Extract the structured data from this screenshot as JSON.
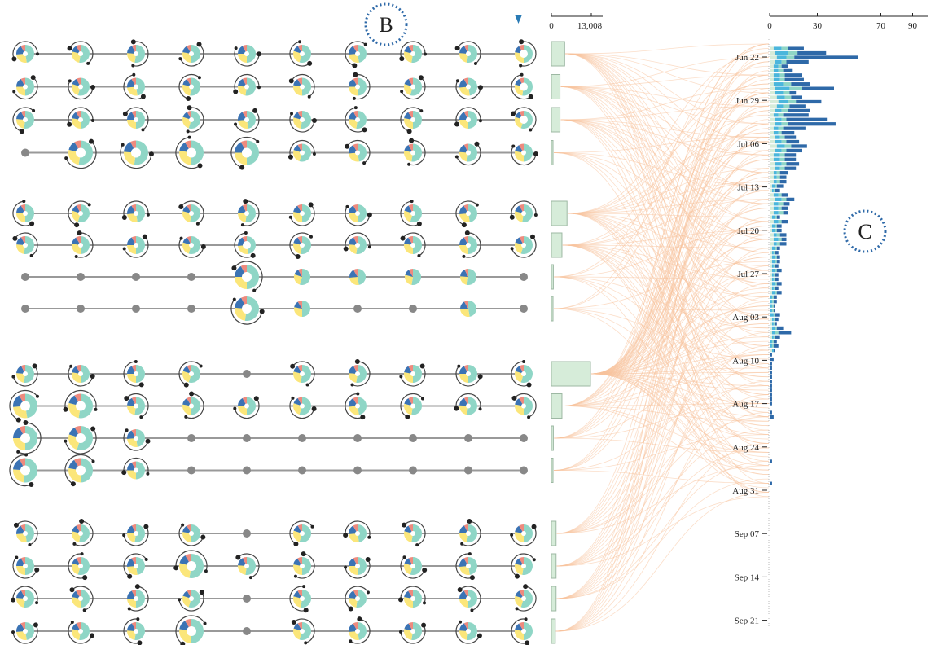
{
  "labels": {
    "panel_b": "B",
    "panel_c": "C"
  },
  "colors": {
    "teal": "#8fd6c6",
    "yellow": "#fbe67a",
    "blue": "#3b73b4",
    "salmon": "#ee8a7e",
    "light_blue": "#4bb6dc",
    "dark_blue": "#2e69a8",
    "pale_green": "#d6ecd9",
    "link": "#f7c39c",
    "line": "#999999",
    "node": "#888888",
    "pointer": "#2a7bb5"
  },
  "chart_data": [
    {
      "type": "table",
      "title": "",
      "groups": [
        {
          "rows": [
            {
              "pattern": [
                1,
                1,
                1,
                1,
                1,
                1,
                1,
                1,
                1,
                2
              ],
              "bar": 0.34
            },
            {
              "pattern": [
                1,
                1,
                1,
                1,
                1,
                1,
                1,
                1,
                1,
                2
              ],
              "bar": 0.22
            },
            {
              "pattern": [
                1,
                1,
                1,
                1,
                1,
                1,
                1,
                1,
                1,
                2
              ],
              "bar": 0.22
            },
            {
              "pattern": [
                0,
                3,
                3,
                3,
                3,
                1,
                1,
                1,
                1,
                1
              ],
              "bar": 0.04
            }
          ]
        },
        {
          "rows": [
            {
              "pattern": [
                1,
                1,
                1,
                1,
                1,
                1,
                1,
                1,
                1,
                1
              ],
              "bar": 0.4
            },
            {
              "pattern": [
                1,
                1,
                1,
                1,
                2,
                1,
                1,
                1,
                1,
                1
              ],
              "bar": 0.27
            },
            {
              "pattern": [
                0,
                0,
                0,
                0,
                3,
                4,
                4,
                4,
                4,
                0
              ],
              "bar": 0.05
            },
            {
              "pattern": [
                0,
                0,
                0,
                0,
                3,
                4,
                0,
                0,
                4,
                0
              ],
              "bar": 0.04
            }
          ]
        },
        {
          "rows": [
            {
              "pattern": [
                1,
                1,
                1,
                1,
                0,
                1,
                1,
                1,
                1,
                1
              ],
              "bar": 1.0
            },
            {
              "pattern": [
                3,
                3,
                1,
                1,
                1,
                1,
                1,
                1,
                1,
                1
              ],
              "bar": 0.27
            },
            {
              "pattern": [
                3,
                3,
                1,
                0,
                0,
                0,
                0,
                0,
                0,
                0
              ],
              "bar": 0.05
            },
            {
              "pattern": [
                3,
                3,
                1,
                0,
                0,
                0,
                0,
                0,
                0,
                0
              ],
              "bar": 0.04
            }
          ]
        },
        {
          "rows": [
            {
              "pattern": [
                1,
                1,
                1,
                1,
                0,
                1,
                1,
                1,
                1,
                1
              ],
              "bar": 0.12
            },
            {
              "pattern": [
                1,
                1,
                1,
                3,
                1,
                1,
                1,
                1,
                1,
                1
              ],
              "bar": 0.12
            },
            {
              "pattern": [
                1,
                1,
                1,
                1,
                0,
                1,
                1,
                1,
                1,
                1
              ],
              "bar": 0.12
            },
            {
              "pattern": [
                1,
                1,
                1,
                3,
                0,
                1,
                1,
                1,
                1,
                1
              ],
              "bar": 0.1
            }
          ]
        }
      ],
      "bar_axis": {
        "ticks": [
          "0",
          "13,008"
        ],
        "max": 13008
      }
    },
    {
      "type": "bar",
      "title": "",
      "x_ticks": [
        "0",
        "30",
        "70",
        "90"
      ],
      "x_max": 100,
      "date_ticks": [
        "Jun 22",
        "Jun 29",
        "Jul 06",
        "Jul 13",
        "Jul 20",
        "Jul 27",
        "Aug 03",
        "Aug 10",
        "Aug 17",
        "Aug 24",
        "Aug 31",
        "Sep 07",
        "Sep 14",
        "Sep 21"
      ],
      "series": [
        {
          "values": [
            0,
            2,
            3,
            4,
            3,
            2,
            2,
            2,
            2,
            2,
            3,
            3,
            4,
            5,
            4,
            3,
            2,
            3,
            3,
            2,
            2,
            3,
            3,
            4,
            3,
            2,
            2,
            3,
            3,
            2,
            2,
            2,
            1,
            1,
            2,
            3,
            2,
            2,
            2,
            1,
            2,
            1,
            1,
            2,
            2,
            2,
            1,
            1,
            1,
            1,
            1,
            1,
            1,
            1,
            1,
            1,
            1,
            0,
            0,
            0,
            0,
            0,
            1,
            1,
            1,
            1,
            1,
            0,
            0,
            1,
            0,
            0,
            0,
            0,
            0,
            0,
            0,
            0,
            0,
            0,
            0,
            0,
            0,
            0,
            0,
            0,
            0,
            0,
            0,
            0,
            0,
            0,
            0,
            0,
            0,
            0,
            0,
            0,
            0,
            0,
            0,
            0,
            0
          ]
        },
        {
          "values": [
            0,
            5,
            8,
            6,
            4,
            3,
            3,
            4,
            4,
            6,
            9,
            5,
            5,
            6,
            4,
            4,
            3,
            4,
            4,
            3,
            3,
            3,
            4,
            5,
            4,
            4,
            4,
            4,
            3,
            2,
            2,
            2,
            2,
            1,
            3,
            4,
            3,
            3,
            3,
            2,
            3,
            2,
            2,
            2,
            3,
            2,
            2,
            1,
            2,
            2,
            1,
            2,
            1,
            1,
            2,
            1,
            2,
            1,
            1,
            1,
            1,
            2,
            1,
            1,
            2,
            2,
            1,
            1,
            1,
            1,
            0,
            0,
            0,
            0,
            0,
            0,
            0,
            0,
            0,
            0,
            0,
            0,
            0,
            0,
            0,
            0,
            0,
            0,
            0,
            0,
            0,
            0,
            0,
            0,
            0,
            0,
            0,
            0,
            0,
            0,
            0,
            0,
            0
          ]
        },
        {
          "values": [
            0,
            4,
            6,
            5,
            3,
            2,
            3,
            3,
            3,
            5,
            8,
            4,
            4,
            5,
            4,
            4,
            3,
            3,
            4,
            3,
            2,
            3,
            3,
            4,
            3,
            3,
            3,
            3,
            3,
            2,
            2,
            2,
            1,
            1,
            2,
            3,
            3,
            2,
            3,
            1,
            2,
            1,
            1,
            2,
            2,
            2,
            1,
            1,
            1,
            1,
            1,
            1,
            1,
            1,
            1,
            1,
            1,
            1,
            1,
            1,
            1,
            1,
            1,
            1,
            1,
            2,
            1,
            1,
            1,
            0,
            0,
            0,
            0,
            0,
            0,
            0,
            0,
            0,
            0,
            0,
            0,
            0,
            0,
            0,
            0,
            0,
            0,
            0,
            0,
            0,
            0,
            0,
            0,
            0,
            0,
            0,
            0,
            0,
            0,
            0,
            0,
            0,
            0
          ]
        },
        {
          "values": [
            0,
            10,
            18,
            40,
            14,
            4,
            6,
            11,
            12,
            12,
            20,
            4,
            7,
            16,
            10,
            14,
            16,
            26,
            30,
            14,
            8,
            7,
            8,
            10,
            10,
            7,
            7,
            8,
            7,
            5,
            4,
            4,
            4,
            3,
            4,
            5,
            4,
            4,
            3,
            2,
            4,
            3,
            3,
            4,
            3,
            4,
            2,
            2,
            2,
            2,
            2,
            3,
            2,
            2,
            3,
            2,
            3,
            2,
            2,
            1,
            1,
            3,
            2,
            1,
            4,
            8,
            3,
            2,
            3,
            1,
            1,
            2,
            1,
            1,
            1,
            1,
            1,
            1,
            1,
            1,
            1,
            1,
            0,
            1,
            2,
            0,
            0,
            0,
            0,
            0,
            0,
            0,
            0,
            0,
            1,
            0,
            0,
            0,
            0,
            1,
            0,
            0,
            0
          ]
        }
      ]
    }
  ]
}
